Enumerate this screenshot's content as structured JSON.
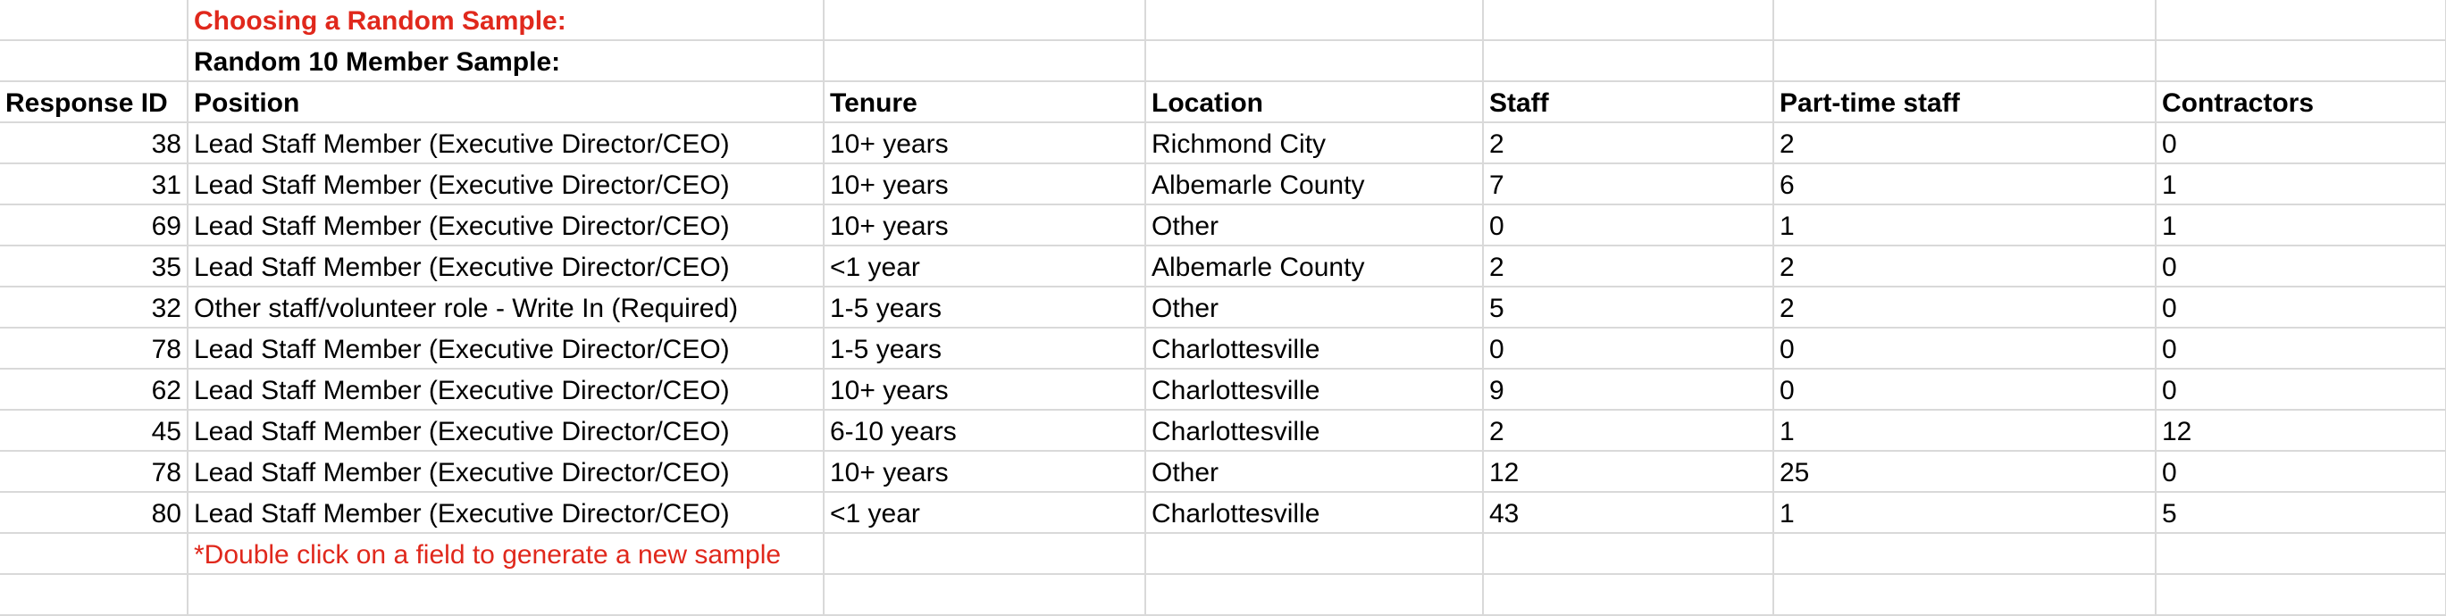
{
  "sheet": {
    "title": "Choosing a Random Sample:",
    "subtitle": "Random 10 Member Sample:",
    "note": "*Double click on a field to generate a new sample",
    "headers": {
      "response_id": "Response ID",
      "position": "Position",
      "tenure": "Tenure",
      "location": "Location",
      "staff": "Staff",
      "part_time_staff": "Part-time staff",
      "contractors": "Contractors"
    },
    "rows": [
      {
        "id": "38",
        "position": "Lead Staff Member (Executive Director/CEO)",
        "tenure": "10+ years",
        "location": "Richmond City",
        "staff": "2",
        "part_time": "2",
        "contractors": "0"
      },
      {
        "id": "31",
        "position": "Lead Staff Member (Executive Director/CEO)",
        "tenure": "10+ years",
        "location": "Albemarle County",
        "staff": "7",
        "part_time": "6",
        "contractors": "1"
      },
      {
        "id": "69",
        "position": "Lead Staff Member (Executive Director/CEO)",
        "tenure": "10+ years",
        "location": "Other",
        "staff": "0",
        "part_time": "1",
        "contractors": "1"
      },
      {
        "id": "35",
        "position": "Lead Staff Member (Executive Director/CEO)",
        "tenure": "<1 year",
        "location": "Albemarle County",
        "staff": "2",
        "part_time": "2",
        "contractors": "0"
      },
      {
        "id": "32",
        "position": "Other staff/volunteer role - Write In (Required)",
        "tenure": "1-5 years",
        "location": "Other",
        "staff": "5",
        "part_time": "2",
        "contractors": "0"
      },
      {
        "id": "78",
        "position": "Lead Staff Member (Executive Director/CEO)",
        "tenure": "1-5 years",
        "location": "Charlottesville",
        "staff": "0",
        "part_time": "0",
        "contractors": "0"
      },
      {
        "id": "62",
        "position": "Lead Staff Member (Executive Director/CEO)",
        "tenure": "10+ years",
        "location": "Charlottesville",
        "staff": "9",
        "part_time": "0",
        "contractors": "0"
      },
      {
        "id": "45",
        "position": "Lead Staff Member (Executive Director/CEO)",
        "tenure": "6-10 years",
        "location": "Charlottesville",
        "staff": "2",
        "part_time": "1",
        "contractors": "12"
      },
      {
        "id": "78",
        "position": "Lead Staff Member (Executive Director/CEO)",
        "tenure": "10+ years",
        "location": "Other",
        "staff": "12",
        "part_time": "25",
        "contractors": "0"
      },
      {
        "id": "80",
        "position": "Lead Staff Member (Executive Director/CEO)",
        "tenure": "<1 year",
        "location": "Charlottesville",
        "staff": "43",
        "part_time": "1",
        "contractors": "5"
      }
    ],
    "colors": {
      "title_red": "#e0281c",
      "gridline": "#d9d9d9"
    }
  }
}
